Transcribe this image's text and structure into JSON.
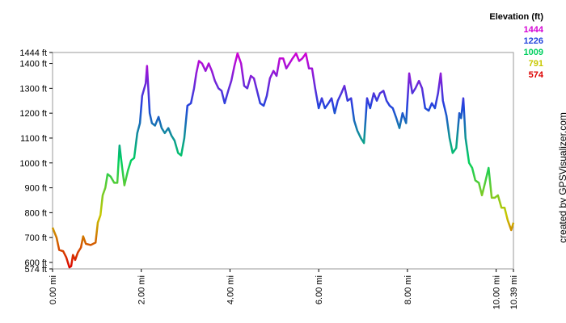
{
  "chart_data": {
    "type": "line",
    "x_unit_ticks": null,
    "xlim": [
      0,
      10.39
    ],
    "ylim": [
      574,
      1444
    ],
    "xticks": [
      {
        "value": 0,
        "label": "0.00 mi"
      },
      {
        "value": 2,
        "label": "2.00 mi"
      },
      {
        "value": 4,
        "label": "4.00 mi"
      },
      {
        "value": 6,
        "label": "6.00 mi"
      },
      {
        "value": 8,
        "label": "8.00 mi"
      },
      {
        "value": 10,
        "label": "10.00 mi"
      },
      {
        "value": 10.39,
        "label": "10.39 mi"
      }
    ],
    "yticks": [
      {
        "value": 574,
        "label": "574 ft"
      },
      {
        "value": 600,
        "label": "600 ft"
      },
      {
        "value": 700,
        "label": "700 ft"
      },
      {
        "value": 800,
        "label": "800 ft"
      },
      {
        "value": 900,
        "label": "900 ft"
      },
      {
        "value": 1000,
        "label": "1000 ft"
      },
      {
        "value": 1100,
        "label": "1100 ft"
      },
      {
        "value": 1200,
        "label": "1200 ft"
      },
      {
        "value": 1300,
        "label": "1300 ft"
      },
      {
        "value": 1400,
        "label": "1400 ft"
      },
      {
        "value": 1444,
        "label": "1444 ft"
      }
    ],
    "color_scale": {
      "title": "Elevation (ft)",
      "stops": [
        {
          "value": 1444,
          "color": "#d400d4"
        },
        {
          "value": 1226,
          "color": "#2244dd"
        },
        {
          "value": 1009,
          "color": "#00d060"
        },
        {
          "value": 791,
          "color": "#c8c800"
        },
        {
          "value": 574,
          "color": "#dd0000"
        }
      ]
    },
    "credit": "created by GPSVisualizer.com",
    "series": [
      {
        "x": [
          0,
          0.09,
          0.15,
          0.24,
          0.31,
          0.38,
          0.42,
          0.46,
          0.51,
          0.57,
          0.64,
          0.69,
          0.75,
          0.86,
          0.97,
          1.02,
          1.08,
          1.13,
          1.19,
          1.24,
          1.31,
          1.39,
          1.46,
          1.51,
          1.57,
          1.62,
          1.7,
          1.77,
          1.84,
          1.91,
          1.97,
          2.02,
          2.1,
          2.13,
          2.19,
          2.24,
          2.31,
          2.39,
          2.46,
          2.53,
          2.61,
          2.68,
          2.75,
          2.83,
          2.9,
          2.97,
          3.04,
          3.12,
          3.19,
          3.24,
          3.3,
          3.37,
          3.45,
          3.52,
          3.59,
          3.66,
          3.74,
          3.81,
          3.88,
          3.96,
          4.03,
          4.1,
          4.17,
          4.25,
          4.32,
          4.39,
          4.47,
          4.54,
          4.61,
          4.68,
          4.76,
          4.83,
          4.9,
          4.98,
          5.05,
          5.12,
          5.2,
          5.27,
          5.34,
          5.41,
          5.49,
          5.56,
          5.63,
          5.71,
          5.78,
          5.85,
          5.92,
          6.0,
          6.07,
          6.14,
          6.22,
          6.29,
          6.36,
          6.43,
          6.51,
          6.58,
          6.65,
          6.73,
          6.8,
          6.87,
          6.95,
          7.02,
          7.09,
          7.16,
          7.24,
          7.31,
          7.38,
          7.46,
          7.53,
          7.6,
          7.67,
          7.75,
          7.82,
          7.89,
          7.97,
          8.04,
          8.11,
          8.18,
          8.26,
          8.33,
          8.4,
          8.48,
          8.55,
          8.62,
          8.69,
          8.75,
          8.8,
          8.88,
          8.95,
          9.02,
          9.1,
          9.17,
          9.21,
          9.26,
          9.31,
          9.39,
          9.46,
          9.53,
          9.61,
          9.68,
          9.75,
          9.83,
          9.9,
          9.97,
          10.04,
          10.12,
          10.19,
          10.26,
          10.34,
          10.39
        ],
        "values": [
          740,
          700,
          650,
          645,
          620,
          580,
          585,
          630,
          610,
          640,
          660,
          705,
          675,
          670,
          680,
          760,
          790,
          870,
          900,
          955,
          945,
          920,
          920,
          1070,
          980,
          910,
          970,
          1010,
          1020,
          1120,
          1160,
          1270,
          1320,
          1390,
          1200,
          1160,
          1150,
          1185,
          1140,
          1120,
          1140,
          1110,
          1090,
          1040,
          1030,
          1100,
          1230,
          1240,
          1300,
          1360,
          1410,
          1400,
          1370,
          1400,
          1370,
          1330,
          1300,
          1290,
          1240,
          1290,
          1330,
          1390,
          1440,
          1400,
          1310,
          1300,
          1350,
          1340,
          1290,
          1240,
          1230,
          1270,
          1340,
          1370,
          1350,
          1420,
          1420,
          1380,
          1400,
          1420,
          1440,
          1410,
          1420,
          1440,
          1380,
          1380,
          1300,
          1220,
          1260,
          1220,
          1240,
          1260,
          1200,
          1250,
          1280,
          1310,
          1250,
          1260,
          1170,
          1130,
          1100,
          1080,
          1260,
          1220,
          1280,
          1250,
          1280,
          1290,
          1250,
          1230,
          1220,
          1180,
          1140,
          1200,
          1160,
          1360,
          1280,
          1300,
          1330,
          1300,
          1220,
          1210,
          1240,
          1220,
          1280,
          1360,
          1250,
          1190,
          1100,
          1040,
          1060,
          1200,
          1180,
          1260,
          1100,
          1000,
          980,
          930,
          920,
          870,
          920,
          980,
          860,
          860,
          870,
          820,
          820,
          770,
          730,
          760
        ]
      }
    ]
  }
}
